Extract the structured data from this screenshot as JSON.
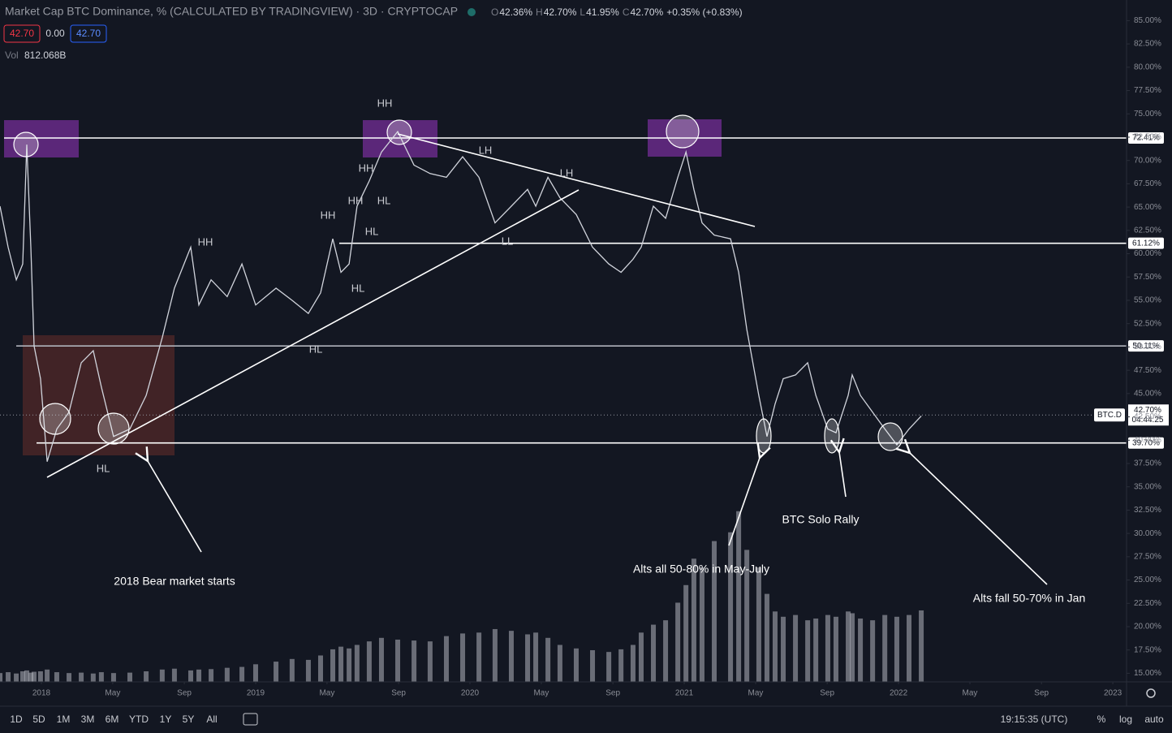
{
  "header": {
    "title": "Market Cap BTC Dominance, % (CALCULATED BY TRADINGVIEW) · 3D · CRYPTOCAP",
    "ohlc": [
      {
        "key": "O",
        "text": "42.36%"
      },
      {
        "key": "H",
        "text": "42.70%"
      },
      {
        "key": "L",
        "text": "41.95%"
      },
      {
        "key": "C",
        "text": "42.70%"
      }
    ],
    "change": "+0.35% (+0.83%)",
    "inputs": [
      "42.70",
      "0.00",
      "42.70"
    ],
    "volume_label": "Vol",
    "volume_text": "812.068B"
  },
  "chart_data": {
    "type": "line",
    "x": [
      2017.807,
      2017.845,
      2017.883,
      2017.913,
      2017.932,
      2017.951,
      2017.966,
      2017.996,
      2018.027,
      2018.072,
      2018.129,
      2018.186,
      2018.242,
      2018.28,
      2018.337,
      2018.413,
      2018.489,
      2018.564,
      2018.621,
      2018.697,
      2018.735,
      2018.792,
      2018.867,
      2018.936,
      2019.0,
      2019.095,
      2019.17,
      2019.246,
      2019.303,
      2019.36,
      2019.398,
      2019.436,
      2019.473,
      2019.53,
      2019.587,
      2019.663,
      2019.739,
      2019.814,
      2019.89,
      2019.966,
      2020.042,
      2020.117,
      2020.193,
      2020.269,
      2020.307,
      2020.364,
      2020.42,
      2020.496,
      2020.572,
      2020.648,
      2020.705,
      2020.761,
      2020.799,
      2020.856,
      2020.913,
      2020.97,
      2021.008,
      2021.045,
      2021.083,
      2021.14,
      2021.216,
      2021.254,
      2021.292,
      2021.348,
      2021.386,
      2021.424,
      2021.462,
      2021.519,
      2021.576,
      2021.614,
      2021.67,
      2021.708,
      2021.765,
      2021.784,
      2021.822,
      2021.879,
      2021.936,
      2021.992,
      2022.049,
      2022.106
    ],
    "series": [
      {
        "name": "BTC.D",
        "color": "#d1d4dc",
        "values": [
          65.1,
          60.7,
          57.2,
          58.9,
          71.7,
          60.7,
          50.1,
          46.6,
          37.7,
          41.2,
          43.0,
          48.3,
          49.6,
          45.7,
          40.4,
          41.2,
          44.8,
          51.0,
          56.3,
          60.7,
          54.5,
          57.2,
          55.4,
          58.9,
          54.5,
          56.3,
          55.0,
          53.6,
          55.8,
          61.6,
          58.0,
          58.9,
          65.1,
          67.8,
          70.9,
          73.1,
          69.5,
          68.6,
          68.2,
          70.4,
          68.2,
          63.3,
          65.1,
          66.9,
          65.1,
          68.2,
          66.0,
          64.2,
          60.7,
          58.9,
          58.0,
          59.4,
          60.7,
          65.1,
          63.8,
          68.2,
          70.9,
          66.9,
          63.3,
          62.0,
          61.6,
          58.0,
          51.9,
          44.8,
          40.4,
          43.9,
          46.6,
          47.0,
          48.3,
          44.8,
          41.2,
          40.8,
          44.8,
          47.0,
          44.8,
          43.0,
          41.2,
          39.5,
          41.2,
          42.6
        ]
      }
    ],
    "volume": {
      "name": "Vol",
      "color": "#b2b5be",
      "ylim": [
        0,
        7750
      ],
      "values": [
        100,
        110,
        95,
        120,
        130,
        105,
        115,
        120,
        140,
        110,
        100,
        105,
        95,
        110,
        100,
        105,
        120,
        140,
        150,
        130,
        140,
        145,
        160,
        170,
        200,
        230,
        260,
        250,
        300,
        370,
        400,
        380,
        420,
        460,
        500,
        480,
        470,
        460,
        520,
        550,
        560,
        600,
        580,
        540,
        560,
        500,
        420,
        380,
        360,
        340,
        370,
        420,
        560,
        650,
        700,
        900,
        1100,
        1400,
        1300,
        1600,
        1700,
        1940,
        1500,
        1300,
        1000,
        800,
        740,
        760,
        700,
        720,
        760,
        740,
        800,
        780,
        720,
        700,
        760,
        740,
        760,
        812.068
      ]
    },
    "xlim": [
      2017.807,
      2023.064
    ],
    "xticks": [
      2018,
      {
        "value": 2018.333,
        "label": "May"
      },
      {
        "value": 2018.667,
        "label": "Sep"
      },
      2019,
      {
        "value": 2019.333,
        "label": "May"
      },
      {
        "value": 2019.667,
        "label": "Sep"
      },
      2020,
      {
        "value": 2020.333,
        "label": "May"
      },
      {
        "value": 2020.667,
        "label": "Sep"
      },
      2021,
      {
        "value": 2021.333,
        "label": "May"
      },
      {
        "value": 2021.667,
        "label": "Sep"
      },
      2022,
      {
        "value": 2022.333,
        "label": "May"
      },
      {
        "value": 2022.667,
        "label": "Sep"
      },
      2023
    ],
    "ylim": [
      14.08,
      87.21
    ],
    "yticks": [
      {
        "value": 15,
        "label": "15.00%"
      },
      {
        "value": 17.5,
        "label": "17.50%"
      },
      {
        "value": 20,
        "label": "20.00%"
      },
      {
        "value": 22.5,
        "label": "22.50%"
      },
      {
        "value": 25,
        "label": "25.00%"
      },
      {
        "value": 27.5,
        "label": "27.50%"
      },
      {
        "value": 30,
        "label": "30.00%"
      },
      {
        "value": 32.5,
        "label": "32.50%"
      },
      {
        "value": 35,
        "label": "35.00%"
      },
      {
        "value": 37.5,
        "label": "37.50%"
      },
      {
        "value": 40,
        "label": "40.00%"
      },
      {
        "value": 42.5,
        "label": "42.50%"
      },
      {
        "value": 45,
        "label": "45.00%"
      },
      {
        "value": 47.5,
        "label": "47.50%"
      },
      {
        "value": 50,
        "label": "50.00%"
      },
      {
        "value": 52.5,
        "label": "52.50%"
      },
      {
        "value": 55,
        "label": "55.00%"
      },
      {
        "value": 57.5,
        "label": "57.50%"
      },
      {
        "value": 60,
        "label": "60.00%"
      },
      {
        "value": 62.5,
        "label": "62.50%"
      },
      {
        "value": 65,
        "label": "65.00%"
      },
      {
        "value": 67.5,
        "label": "67.50%"
      },
      {
        "value": 70,
        "label": "70.00%"
      },
      {
        "value": 72.5,
        "label": "72.50%"
      },
      {
        "value": 75,
        "label": "75.00%"
      },
      {
        "value": 77.5,
        "label": "77.50%"
      },
      {
        "value": 80,
        "label": "80.00%"
      },
      {
        "value": 82.5,
        "label": "82.50%"
      },
      {
        "value": 85,
        "label": "85.00%"
      }
    ],
    "grid": false,
    "levels": [
      {
        "value": 72.41,
        "label": "72.41%"
      },
      {
        "value": 61.12,
        "label": "61.12%"
      },
      {
        "value": 50.11,
        "label": "50.11%"
      },
      {
        "value": 39.7,
        "label": "39.70%"
      }
    ],
    "last": {
      "value": 42.7,
      "label": "42.70%",
      "countdown": "04:44:25"
    }
  },
  "annotations": {
    "pattern_labels": [
      "HH",
      "HH",
      "HH",
      "HH",
      "HH",
      "HL",
      "HL",
      "HL",
      "HL",
      "HL",
      "LH",
      "LH",
      "LL"
    ],
    "notes": [
      "2018 Bear market starts",
      "BTC Solo Rally",
      "Alts all 50-80% in May-July",
      "Alts fall 50-70% in Jan"
    ]
  },
  "toolbar": {
    "ranges": [
      "1D",
      "5D",
      "1M",
      "3M",
      "6M",
      "YTD",
      "1Y",
      "5Y",
      "All"
    ],
    "clock": "19:15:35 (UTC)",
    "options": [
      "%",
      "log",
      "auto"
    ]
  }
}
